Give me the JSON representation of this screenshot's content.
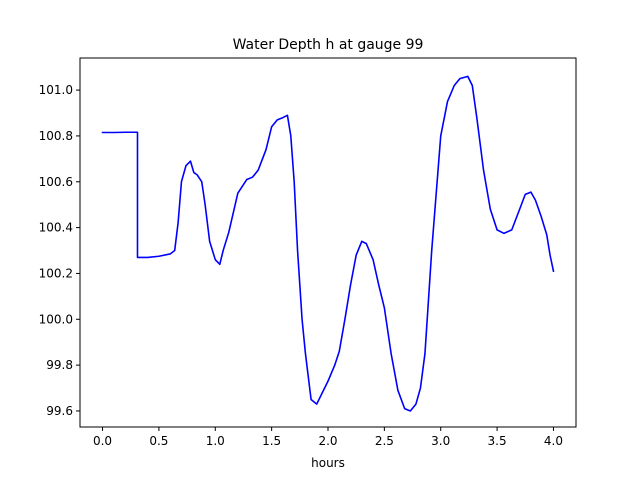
{
  "chart_data": {
    "type": "line",
    "title": "Water Depth h at gauge 99",
    "xlabel": "hours",
    "ylabel": "",
    "xlim": [
      -0.2,
      4.2
    ],
    "ylim": [
      99.53,
      101.14
    ],
    "xticks": [
      0.0,
      0.5,
      1.0,
      1.5,
      2.0,
      2.5,
      3.0,
      3.5,
      4.0
    ],
    "xtick_labels": [
      "0.0",
      "0.5",
      "1.0",
      "1.5",
      "2.0",
      "2.5",
      "3.0",
      "3.5",
      "4.0"
    ],
    "yticks": [
      99.6,
      99.8,
      100.0,
      100.2,
      100.4,
      100.6,
      100.8,
      101.0
    ],
    "ytick_labels": [
      "99.6",
      "99.8",
      "100.0",
      "100.2",
      "100.4",
      "100.6",
      "100.8",
      "101.0"
    ],
    "grid": false,
    "series": [
      {
        "color": "#0000ff",
        "x": [
          0.0,
          0.1,
          0.2,
          0.31,
          0.31,
          0.32,
          0.4,
          0.5,
          0.6,
          0.64,
          0.67,
          0.7,
          0.74,
          0.78,
          0.81,
          0.84,
          0.88,
          0.91,
          0.95,
          1.0,
          1.04,
          1.07,
          1.12,
          1.2,
          1.28,
          1.33,
          1.38,
          1.45,
          1.5,
          1.55,
          1.6,
          1.64,
          1.67,
          1.7,
          1.73,
          1.77,
          1.8,
          1.85,
          1.9,
          1.94,
          2.0,
          2.06,
          2.1,
          2.15,
          2.2,
          2.25,
          2.3,
          2.34,
          2.4,
          2.45,
          2.5,
          2.56,
          2.62,
          2.68,
          2.73,
          2.78,
          2.82,
          2.86,
          2.92,
          3.0,
          3.06,
          3.12,
          3.17,
          3.24,
          3.28,
          3.32,
          3.38,
          3.44,
          3.5,
          3.56,
          3.63,
          3.7,
          3.75,
          3.8,
          3.84,
          3.89,
          3.94,
          3.97,
          4.0
        ],
        "values": [
          100.815,
          100.815,
          100.816,
          100.816,
          100.27,
          100.27,
          100.27,
          100.275,
          100.285,
          100.3,
          100.42,
          100.6,
          100.67,
          100.69,
          100.64,
          100.63,
          100.6,
          100.5,
          100.34,
          100.26,
          100.24,
          100.3,
          100.38,
          100.55,
          100.61,
          100.62,
          100.65,
          100.74,
          100.84,
          100.87,
          100.88,
          100.89,
          100.8,
          100.6,
          100.3,
          100.0,
          99.85,
          99.65,
          99.63,
          99.67,
          99.73,
          99.8,
          99.86,
          100.0,
          100.15,
          100.28,
          100.34,
          100.33,
          100.26,
          100.15,
          100.05,
          99.85,
          99.69,
          99.61,
          99.6,
          99.63,
          99.7,
          99.85,
          100.3,
          100.8,
          100.95,
          101.02,
          101.05,
          101.06,
          101.02,
          100.88,
          100.65,
          100.48,
          100.39,
          100.375,
          100.39,
          100.48,
          100.545,
          100.555,
          100.52,
          100.45,
          100.37,
          100.28,
          100.21
        ]
      }
    ]
  }
}
